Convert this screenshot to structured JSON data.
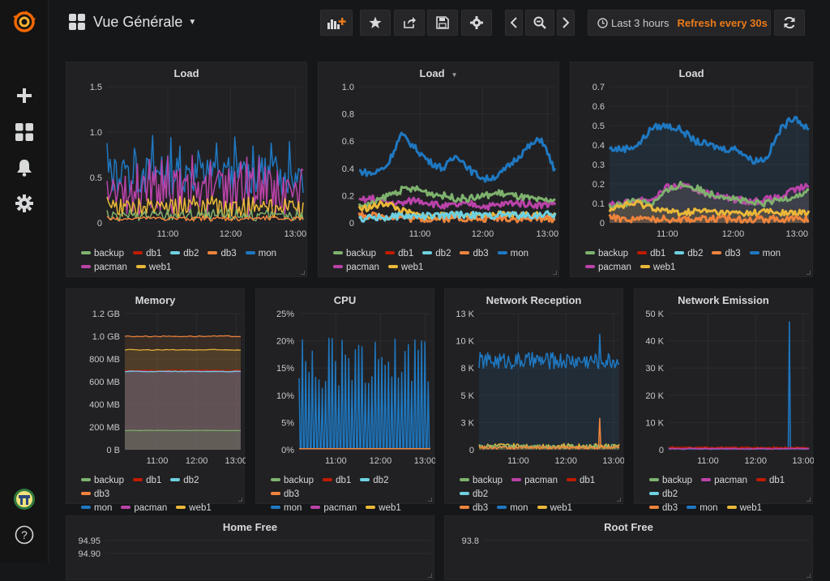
{
  "sidemenu": {
    "logo_icon": "grafana-logo-icon",
    "items": [
      {
        "name": "create",
        "icon": "plus-icon"
      },
      {
        "name": "dashboards",
        "icon": "dashboards-grid-icon"
      },
      {
        "name": "alerting",
        "icon": "bell-icon"
      },
      {
        "name": "configuration",
        "icon": "gear-icon"
      }
    ],
    "bottom": [
      {
        "name": "profile",
        "icon": "avatar-icon"
      },
      {
        "name": "help",
        "icon": "help-icon",
        "label": "?"
      }
    ]
  },
  "navbar": {
    "title": "Vue Générale",
    "time_range": "Last 3 hours",
    "refresh": "Refresh every 30s",
    "buttons": [
      "add-panel-icon",
      "star-icon",
      "share-icon",
      "save-icon",
      "settings-icon",
      "chevron-left-icon",
      "zoom-out-icon",
      "chevron-right-icon",
      "refresh-icon"
    ]
  },
  "colors": {
    "backup": "#7eb26d",
    "db1": "#bf1b00",
    "db2": "#6ed0e0",
    "db3": "#ef843c",
    "mon": "#1f78c1",
    "pacman": "#ba43a9",
    "web1": "#eab839",
    "accent": "#eb7b18"
  },
  "panels": [
    {
      "id": "load1",
      "title": "Load",
      "has_menu": false,
      "legend": [
        "backup",
        "db1",
        "db2",
        "db3",
        "mon",
        "pacman",
        "web1"
      ]
    },
    {
      "id": "load2",
      "title": "Load",
      "has_menu": true,
      "legend": [
        "backup",
        "db1",
        "db2",
        "db3",
        "mon",
        "pacman",
        "web1"
      ]
    },
    {
      "id": "load3",
      "title": "Load",
      "has_menu": false,
      "legend": [
        "backup",
        "db1",
        "db2",
        "db3",
        "mon",
        "pacman",
        "web1"
      ]
    },
    {
      "id": "memory",
      "title": "Memory",
      "has_menu": false,
      "legend": [
        "backup",
        "db1",
        "db2",
        "db3",
        "mon",
        "pacman",
        "web1"
      ]
    },
    {
      "id": "cpu",
      "title": "CPU",
      "has_menu": false,
      "legend": [
        "backup",
        "db1",
        "db2",
        "db3",
        "mon",
        "pacman",
        "web1"
      ]
    },
    {
      "id": "netrx",
      "title": "Network Reception",
      "has_menu": false,
      "legend": [
        "backup",
        "pacman",
        "db1",
        "db2",
        "db3",
        "mon",
        "web1"
      ]
    },
    {
      "id": "nettx",
      "title": "Network Emission",
      "has_menu": false,
      "legend": [
        "backup",
        "pacman",
        "db1",
        "db2",
        "db3",
        "mon",
        "web1"
      ]
    },
    {
      "id": "homefree",
      "title": "Home Free",
      "has_menu": false,
      "legend": []
    },
    {
      "id": "rootfree",
      "title": "Root Free",
      "has_menu": false,
      "legend": []
    }
  ],
  "chart_data": [
    {
      "panel": "load1",
      "type": "line",
      "title": "Load",
      "x_ticks": [
        "11:00",
        "12:00",
        "13:00"
      ],
      "y_ticks": [
        "0",
        "0.5",
        "1.0",
        "1.5"
      ],
      "ylim": [
        0,
        1.5
      ],
      "series": [
        {
          "name": "mon",
          "base": 0.3,
          "amp": 0.45,
          "spike_every": 6,
          "peak": 1.0
        },
        {
          "name": "pacman",
          "base": 0.08,
          "amp": 0.5,
          "spike_every": 4,
          "peak": 0.75
        },
        {
          "name": "web1",
          "base": 0.05,
          "amp": 0.2,
          "spike_every": 3,
          "peak": 0.3
        },
        {
          "name": "backup",
          "base": 0.02,
          "amp": 0.1,
          "spike_every": 5,
          "peak": 0.15
        },
        {
          "name": "db3",
          "base": 0.02,
          "amp": 0.05,
          "spike_every": 7,
          "peak": 0.08
        }
      ]
    },
    {
      "panel": "load2",
      "type": "line",
      "title": "Load",
      "x_ticks": [
        "11:00",
        "12:00",
        "13:00"
      ],
      "y_ticks": [
        "0",
        "0.2",
        "0.4",
        "0.6",
        "0.8",
        "1.0"
      ],
      "ylim": [
        0,
        1.0
      ],
      "series": [
        {
          "name": "mon",
          "level": [
            0.38,
            0.36,
            0.42,
            0.65,
            0.55,
            0.45,
            0.4,
            0.5,
            0.38,
            0.32,
            0.35,
            0.45,
            0.55,
            0.62,
            0.38
          ]
        },
        {
          "name": "pacman",
          "level": [
            0.16,
            0.18,
            0.15,
            0.14,
            0.17,
            0.15,
            0.12,
            0.13,
            0.14,
            0.12,
            0.13,
            0.15,
            0.14,
            0.13,
            0.15
          ]
        },
        {
          "name": "backup",
          "level": [
            0.12,
            0.14,
            0.2,
            0.24,
            0.25,
            0.22,
            0.2,
            0.18,
            0.18,
            0.2,
            0.22,
            0.2,
            0.18,
            0.16,
            0.17
          ]
        },
        {
          "name": "web1",
          "level": [
            0.1,
            0.12,
            0.15,
            0.09,
            0.06,
            0.04,
            0.05,
            0.06,
            0.05,
            0.04,
            0.06,
            0.06,
            0.06,
            0.05,
            0.05
          ]
        },
        {
          "name": "db3",
          "level": [
            0.06,
            0.05,
            0.05,
            0.04,
            0.03,
            0.03,
            0.03,
            0.04,
            0.03,
            0.03,
            0.04,
            0.03,
            0.03,
            0.03,
            0.03
          ]
        },
        {
          "name": "db2",
          "level": [
            0.03,
            0.04,
            0.04,
            0.05,
            0.05,
            0.05,
            0.05,
            0.06,
            0.06,
            0.05,
            0.06,
            0.06,
            0.05,
            0.06,
            0.06
          ]
        }
      ]
    },
    {
      "panel": "load3",
      "type": "area",
      "title": "Load",
      "x_ticks": [
        "11:00",
        "12:00",
        "13:00"
      ],
      "y_ticks": [
        "0",
        "0.1",
        "0.2",
        "0.3",
        "0.4",
        "0.5",
        "0.6",
        "0.7"
      ],
      "ylim": [
        0,
        0.7
      ],
      "series": [
        {
          "name": "mon",
          "level": [
            0.38,
            0.38,
            0.4,
            0.49,
            0.5,
            0.48,
            0.42,
            0.4,
            0.38,
            0.38,
            0.32,
            0.33,
            0.48,
            0.55,
            0.47
          ]
        },
        {
          "name": "pacman",
          "level": [
            0.1,
            0.1,
            0.12,
            0.12,
            0.18,
            0.19,
            0.17,
            0.15,
            0.13,
            0.12,
            0.11,
            0.12,
            0.13,
            0.17,
            0.19
          ]
        },
        {
          "name": "backup",
          "level": [
            0.08,
            0.1,
            0.12,
            0.1,
            0.16,
            0.2,
            0.18,
            0.15,
            0.14,
            0.12,
            0.1,
            0.1,
            0.12,
            0.14,
            0.16
          ]
        },
        {
          "name": "web1",
          "level": [
            0.07,
            0.09,
            0.1,
            0.08,
            0.06,
            0.05,
            0.06,
            0.06,
            0.05,
            0.05,
            0.05,
            0.06,
            0.05,
            0.05,
            0.05
          ]
        },
        {
          "name": "db3",
          "level": [
            0.03,
            0.02,
            0.02,
            0.02,
            0.02,
            0.02,
            0.02,
            0.02,
            0.02,
            0.02,
            0.02,
            0.02,
            0.02,
            0.02,
            0.02
          ]
        }
      ]
    },
    {
      "panel": "memory",
      "type": "area",
      "title": "Memory",
      "x_ticks": [
        "11:00",
        "12:00",
        "13:00"
      ],
      "y_ticks": [
        "0 B",
        "200 MB",
        "400 MB",
        "600 MB",
        "800 MB",
        "1.0 GB",
        "1.2 GB"
      ],
      "ylim": [
        0,
        1200
      ],
      "series": [
        {
          "name": "db3",
          "flat": 1000
        },
        {
          "name": "web1",
          "flat": 880
        },
        {
          "name": "db1",
          "flat": 700
        },
        {
          "name": "mon",
          "flat": 690
        },
        {
          "name": "pacman",
          "flat": 690
        },
        {
          "name": "db2",
          "flat": 690
        },
        {
          "name": "backup",
          "flat": 170
        }
      ]
    },
    {
      "panel": "cpu",
      "type": "line",
      "title": "CPU",
      "x_ticks": [
        "11:00",
        "12:00",
        "13:00"
      ],
      "y_ticks": [
        "0%",
        "5%",
        "10%",
        "15%",
        "20%",
        "25%"
      ],
      "ylim": [
        0,
        25
      ],
      "series": [
        {
          "name": "mon",
          "spike_every": 3,
          "peak": 20.5,
          "base": 0.3
        },
        {
          "name": "db3",
          "flat": 0.2
        }
      ]
    },
    {
      "panel": "netrx",
      "type": "area",
      "title": "Network Reception",
      "x_ticks": [
        "11:00",
        "12:00",
        "13:00"
      ],
      "y_ticks": [
        "0",
        "3 K",
        "5 K",
        "8 K",
        "10 K",
        "13 K"
      ],
      "ylim": [
        0,
        13000
      ],
      "series": [
        {
          "name": "mon",
          "base": 8500,
          "amp": 800,
          "peak": 11000
        },
        {
          "name": "web1",
          "base": 350,
          "amp": 250
        },
        {
          "name": "backup",
          "base": 300,
          "amp": 200
        },
        {
          "name": "db3",
          "base": 200,
          "amp": 150,
          "peak": 3000
        }
      ]
    },
    {
      "panel": "nettx",
      "type": "area",
      "title": "Network Emission",
      "x_ticks": [
        "11:00",
        "12:00",
        "13:00"
      ],
      "y_ticks": [
        "0",
        "10 K",
        "20 K",
        "30 K",
        "40 K",
        "50 K"
      ],
      "ylim": [
        0,
        50000
      ],
      "series": [
        {
          "name": "mon",
          "base": 300,
          "amp": 200,
          "peak": 47000
        },
        {
          "name": "db1",
          "base": 800,
          "amp": 300
        },
        {
          "name": "pacman",
          "base": 400,
          "amp": 200
        }
      ]
    },
    {
      "panel": "homefree",
      "type": "line",
      "title": "Home Free",
      "y_ticks": [
        "94.95",
        "94.90"
      ]
    },
    {
      "panel": "rootfree",
      "type": "line",
      "title": "Root Free",
      "y_ticks": [
        "93.8"
      ]
    }
  ]
}
